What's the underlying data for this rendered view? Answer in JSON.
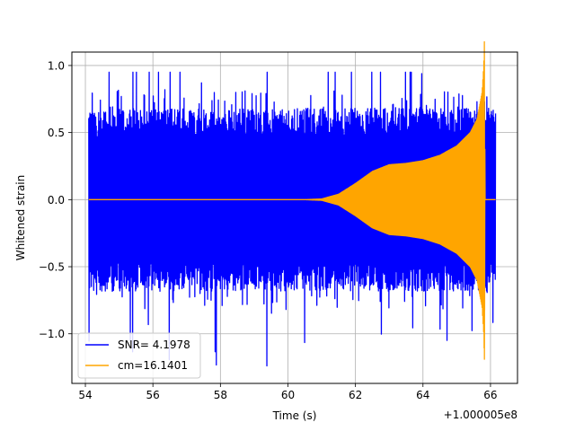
{
  "chart_data": {
    "type": "line",
    "xlabel": "Time (s)",
    "ylabel": "Whitened strain",
    "x_offset_label": "+1.000005e8",
    "xlim": [
      53.6,
      66.8
    ],
    "ylim": [
      -1.37,
      1.1
    ],
    "xticks": [
      54,
      56,
      58,
      60,
      62,
      64,
      66
    ],
    "xtick_labels": [
      "54",
      "56",
      "58",
      "60",
      "62",
      "64",
      "66"
    ],
    "yticks": [
      -1.0,
      -0.5,
      0.0,
      0.5,
      1.0
    ],
    "ytick_labels": [
      "−1.0",
      "−0.5",
      "0.0",
      "0.5",
      "1.0"
    ],
    "grid": true,
    "legend_position": "lower-left",
    "series": [
      {
        "name": "SNR= 4.1978",
        "color": "#0000ff",
        "kind": "noise",
        "x_range": [
          54.1,
          66.15
        ],
        "typical_amplitude": 0.62,
        "peak_max": 0.95,
        "peak_min": -1.26
      },
      {
        "name": "cm=16.1401",
        "color": "#ffa500",
        "kind": "chirp",
        "x_range": [
          54.1,
          66.15
        ],
        "envelope": [
          [
            54.1,
            0.0
          ],
          [
            60.5,
            0.0
          ],
          [
            61.0,
            0.005
          ],
          [
            61.5,
            0.04
          ],
          [
            62.0,
            0.12
          ],
          [
            62.5,
            0.21
          ],
          [
            63.0,
            0.26
          ],
          [
            63.5,
            0.27
          ],
          [
            64.0,
            0.29
          ],
          [
            64.5,
            0.33
          ],
          [
            65.0,
            0.4
          ],
          [
            65.4,
            0.5
          ],
          [
            65.6,
            0.6
          ],
          [
            65.75,
            0.8
          ],
          [
            65.8,
            1.0
          ],
          [
            65.82,
            1.19
          ],
          [
            65.84,
            0.0
          ],
          [
            66.15,
            0.0
          ]
        ]
      }
    ]
  }
}
